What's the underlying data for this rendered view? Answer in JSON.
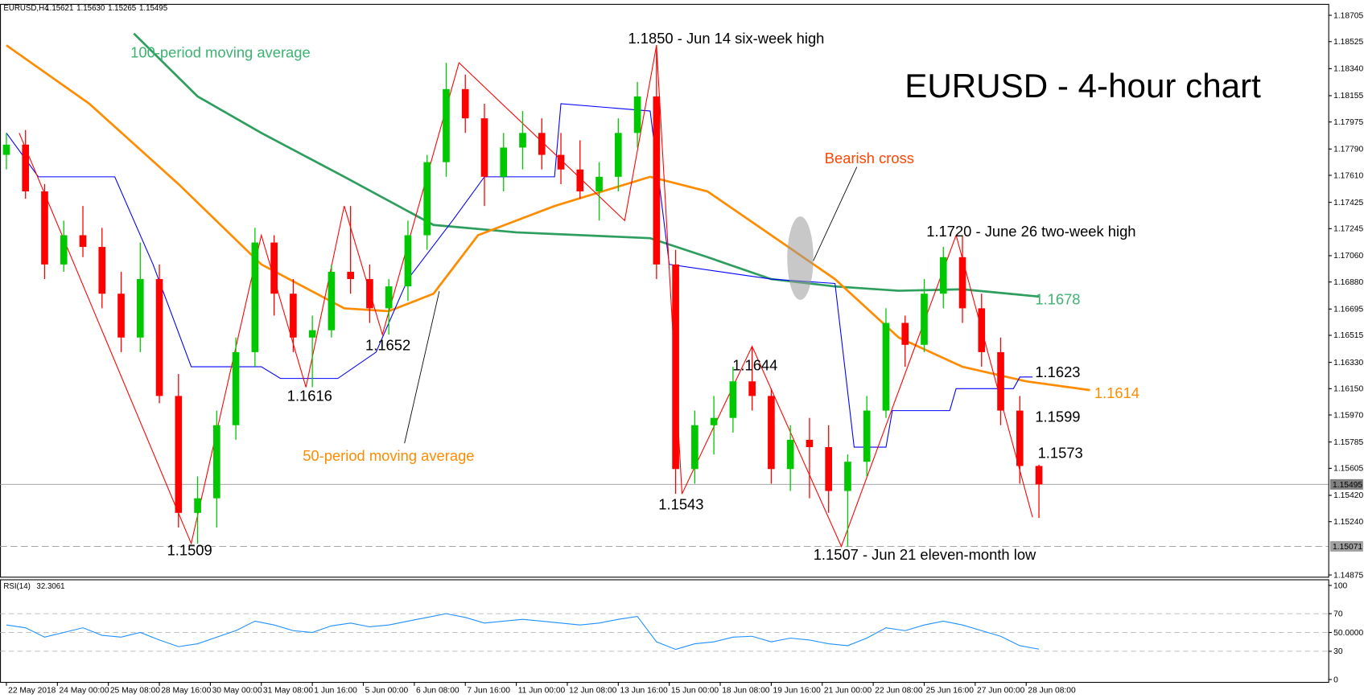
{
  "chart_data": {
    "type": "candlestick",
    "title": "EURUSD - 4-hour chart",
    "last_quote": {
      "symbol": "EURUSD,H4",
      "labels": [
        "1.15621",
        "1.15630",
        "1.15265",
        "1.15495"
      ]
    },
    "x": [
      0,
      3,
      6,
      9,
      12,
      15,
      18,
      21,
      24,
      27,
      30,
      33,
      36,
      39,
      42,
      45,
      48,
      51,
      54,
      57,
      60,
      63,
      66,
      69,
      72,
      75,
      78,
      81,
      84,
      87,
      90,
      93,
      96,
      99,
      102,
      105,
      108,
      111,
      114,
      117,
      120,
      123,
      126,
      129,
      132,
      135,
      138,
      141,
      144,
      147,
      150,
      153,
      156,
      159,
      162
    ],
    "candles": [
      [
        1.1775,
        1.179,
        1.1765,
        1.1782
      ],
      [
        1.1782,
        1.1792,
        1.1745,
        1.175
      ],
      [
        1.175,
        1.1755,
        1.169,
        1.17
      ],
      [
        1.17,
        1.173,
        1.1695,
        1.172
      ],
      [
        1.172,
        1.174,
        1.1705,
        1.1712
      ],
      [
        1.1712,
        1.1725,
        1.167,
        1.168
      ],
      [
        1.168,
        1.1695,
        1.164,
        1.165
      ],
      [
        1.165,
        1.1715,
        1.164,
        1.169
      ],
      [
        1.169,
        1.17,
        1.1605,
        1.161
      ],
      [
        1.161,
        1.1625,
        1.152,
        1.153
      ],
      [
        1.153,
        1.1555,
        1.1509,
        1.154
      ],
      [
        1.154,
        1.16,
        1.152,
        1.159
      ],
      [
        1.159,
        1.165,
        1.158,
        1.164
      ],
      [
        1.164,
        1.1725,
        1.163,
        1.1715
      ],
      [
        1.1715,
        1.172,
        1.1665,
        1.168
      ],
      [
        1.168,
        1.169,
        1.164,
        1.165
      ],
      [
        1.165,
        1.1665,
        1.1616,
        1.1655
      ],
      [
        1.1655,
        1.17,
        1.165,
        1.1695
      ],
      [
        1.1695,
        1.174,
        1.168,
        1.169
      ],
      [
        1.169,
        1.17,
        1.166,
        1.167
      ],
      [
        1.167,
        1.169,
        1.1652,
        1.1685
      ],
      [
        1.1685,
        1.173,
        1.1675,
        1.172
      ],
      [
        1.172,
        1.1775,
        1.171,
        1.177
      ],
      [
        1.177,
        1.1838,
        1.176,
        1.182
      ],
      [
        1.182,
        1.183,
        1.179,
        1.18
      ],
      [
        1.18,
        1.181,
        1.174,
        1.176
      ],
      [
        1.176,
        1.179,
        1.175,
        1.178
      ],
      [
        1.178,
        1.1805,
        1.1765,
        1.179
      ],
      [
        1.179,
        1.18,
        1.1765,
        1.1775
      ],
      [
        1.1775,
        1.179,
        1.1755,
        1.1765
      ],
      [
        1.1765,
        1.1785,
        1.1745,
        1.175
      ],
      [
        1.175,
        1.177,
        1.173,
        1.176
      ],
      [
        1.176,
        1.18,
        1.175,
        1.179
      ],
      [
        1.179,
        1.1825,
        1.178,
        1.1815
      ],
      [
        1.1815,
        1.185,
        1.169,
        1.17
      ],
      [
        1.17,
        1.171,
        1.1543,
        1.156
      ],
      [
        1.156,
        1.16,
        1.155,
        1.159
      ],
      [
        1.159,
        1.161,
        1.157,
        1.1595
      ],
      [
        1.1595,
        1.163,
        1.1585,
        1.162
      ],
      [
        1.162,
        1.1644,
        1.16,
        1.161
      ],
      [
        1.161,
        1.1615,
        1.155,
        1.156
      ],
      [
        1.156,
        1.159,
        1.1545,
        1.158
      ],
      [
        1.158,
        1.1595,
        1.154,
        1.1575
      ],
      [
        1.1575,
        1.159,
        1.153,
        1.1545
      ],
      [
        1.1545,
        1.157,
        1.1507,
        1.1565
      ],
      [
        1.1565,
        1.161,
        1.1555,
        1.16
      ],
      [
        1.16,
        1.167,
        1.1595,
        1.166
      ],
      [
        1.166,
        1.1665,
        1.163,
        1.1645
      ],
      [
        1.1645,
        1.169,
        1.164,
        1.168
      ],
      [
        1.168,
        1.1712,
        1.167,
        1.1705
      ],
      [
        1.1705,
        1.172,
        1.166,
        1.167
      ],
      [
        1.167,
        1.168,
        1.163,
        1.164
      ],
      [
        1.164,
        1.165,
        1.159,
        1.16
      ],
      [
        1.16,
        1.161,
        1.155,
        1.15621
      ],
      [
        1.15621,
        1.1563,
        1.15265,
        1.15495
      ]
    ],
    "bull_color": "#00c800",
    "bear_color": "#ff0000",
    "ma100": {
      "color": "#2e9e5e",
      "x": [
        20,
        30,
        40,
        53,
        67,
        80,
        101,
        110,
        120,
        130,
        140,
        150,
        162
      ],
      "values": [
        1.1858,
        1.1815,
        1.179,
        1.176,
        1.1727,
        1.1722,
        1.1718,
        1.1705,
        1.169,
        1.1685,
        1.1682,
        1.1683,
        1.1678
      ]
    },
    "ma50": {
      "color": "#ff8c00",
      "x": [
        0,
        13,
        27,
        40,
        53,
        60,
        67,
        74,
        86,
        101,
        110,
        120,
        130,
        140,
        150,
        160,
        170
      ],
      "values": [
        1.185,
        1.181,
        1.1755,
        1.17,
        1.167,
        1.1668,
        1.168,
        1.172,
        1.174,
        1.176,
        1.175,
        1.172,
        1.169,
        1.165,
        1.163,
        1.162,
        1.1614
      ]
    },
    "kijun": {
      "color": "#0000ff",
      "x": [
        0,
        5,
        17,
        23,
        29,
        40,
        43,
        52,
        58,
        63,
        70,
        75,
        86,
        87,
        101,
        104,
        120,
        130,
        133,
        138,
        139,
        148,
        149,
        158,
        159,
        161
      ],
      "values": [
        1.179,
        1.176,
        1.176,
        1.17,
        1.163,
        1.163,
        1.1622,
        1.1622,
        1.164,
        1.169,
        1.173,
        1.176,
        1.176,
        1.181,
        1.1805,
        1.17,
        1.169,
        1.1687,
        1.1575,
        1.1575,
        1.16,
        1.16,
        1.1615,
        1.1615,
        1.1623,
        1.1623
      ]
    },
    "zigzag": {
      "color": "#ff0000",
      "x": [
        2,
        29,
        40,
        47,
        53,
        59,
        71,
        97,
        102,
        106,
        117,
        131,
        149,
        161
      ],
      "values": [
        1.179,
        1.1509,
        1.172,
        1.1616,
        1.174,
        1.1652,
        1.1838,
        1.173,
        1.185,
        1.1543,
        1.1644,
        1.1507,
        1.172,
        1.1527
      ]
    },
    "price_line": 1.15495,
    "support_line": 1.15071,
    "ylim": [
      1.1486,
      1.1878
    ],
    "yticks": [
      1.18705,
      1.18525,
      {
        "value": 1.1834,
        "label": "1.18340"
      },
      1.18155,
      1.17975,
      {
        "value": 1.1779,
        "label": "1.17790"
      },
      {
        "value": 1.1761,
        "label": "1.17610"
      },
      1.17425,
      1.17245,
      {
        "value": 1.1706,
        "label": "1.17060"
      },
      {
        "value": 1.1688,
        "label": "1.16880"
      },
      1.16695,
      1.16515,
      {
        "value": 1.1633,
        "label": "1.16330"
      },
      {
        "value": 1.1615,
        "label": "1.16150"
      },
      {
        "value": 1.1597,
        "label": "1.15970"
      },
      1.15785,
      1.15605,
      {
        "value": 1.1542,
        "label": "1.15420"
      },
      {
        "value": 1.1524,
        "label": "1.15240"
      },
      1.14875
    ],
    "xlim": [
      -1,
      207.4
    ],
    "xticks": [
      {
        "value": 0,
        "label": "22 May 2018"
      },
      {
        "value": 8,
        "label": "24 May 00:00"
      },
      {
        "value": 16,
        "label": "25 May 08:00"
      },
      {
        "value": 24,
        "label": "28 May 16:00"
      },
      {
        "value": 32,
        "label": "30 May 00:00"
      },
      {
        "value": 40,
        "label": "31 May 08:00"
      },
      {
        "value": 48,
        "label": "1 Jun 16:00"
      },
      {
        "value": 56,
        "label": "5 Jun 00:00"
      },
      {
        "value": 64,
        "label": "6 Jun 08:00"
      },
      {
        "value": 72,
        "label": "7 Jun 16:00"
      },
      {
        "value": 80,
        "label": "11 Jun 00:00"
      },
      {
        "value": 88,
        "label": "12 Jun 08:00"
      },
      {
        "value": 96,
        "label": "13 Jun 16:00"
      },
      {
        "value": 104,
        "label": "15 Jun 00:00"
      },
      {
        "value": 112,
        "label": "18 Jun 08:00"
      },
      {
        "value": 120,
        "label": "19 Jun 16:00"
      },
      {
        "value": 128,
        "label": "21 Jun 00:00"
      },
      {
        "value": 136,
        "label": "22 Jun 08:00"
      },
      {
        "value": 144,
        "label": "25 Jun 16:00"
      },
      {
        "value": 152,
        "label": "27 Jun 00:00"
      },
      {
        "value": 160,
        "label": "28 Jun 08:00"
      }
    ],
    "annotations": [
      {
        "text": "100-period moving average",
        "color": "#3cb371"
      },
      {
        "text": "50-period moving average",
        "color": "#ff8c00"
      },
      {
        "text": "Bearish cross",
        "color": "#ff4500"
      },
      {
        "text": "1.1850 - Jun 14 six-week high",
        "color": "#000000"
      },
      {
        "text": "1.1720 - June 26 two-week high",
        "color": "#000000"
      },
      {
        "text": "1.1644",
        "color": "#000000"
      },
      {
        "text": "1.1652",
        "color": "#000000"
      },
      {
        "text": "1.1616",
        "color": "#000000"
      },
      {
        "text": "1.1509",
        "color": "#000000"
      },
      {
        "text": "1.1543",
        "color": "#000000"
      },
      {
        "text": "1.1507 - Jun 21 eleven-month low",
        "color": "#000000"
      },
      {
        "text": "1.1678",
        "color": "#3cb371"
      },
      {
        "text": "1.1623",
        "color": "#000000"
      },
      {
        "text": "1.1614",
        "color": "#ff8c00"
      },
      {
        "text": "1.1599",
        "color": "#000000"
      },
      {
        "text": "1.1573",
        "color": "#000000"
      }
    ],
    "rsi": {
      "label": "RSI(14)",
      "color": "#1e90ff",
      "values": [
        58,
        55,
        45,
        50,
        55,
        47,
        45,
        50,
        42,
        35,
        38,
        45,
        52,
        62,
        58,
        52,
        50,
        57,
        60,
        56,
        58,
        62,
        66,
        70,
        66,
        60,
        62,
        64,
        62,
        60,
        58,
        60,
        64,
        67,
        40,
        32,
        38,
        40,
        45,
        46,
        40,
        44,
        42,
        38,
        36,
        44,
        55,
        52,
        58,
        62,
        58,
        52,
        46,
        36,
        32.3061
      ],
      "ylim": [
        -3,
        106
      ],
      "yticks": [
        100,
        70,
        {
          "value": 50,
          "label": "50.0000"
        },
        30,
        0
      ]
    }
  }
}
